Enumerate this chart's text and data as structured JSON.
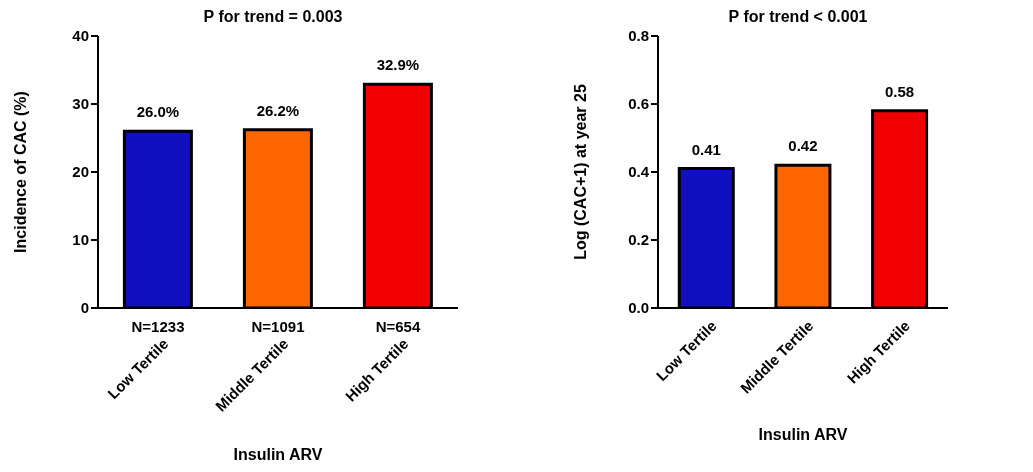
{
  "chart_data": [
    {
      "type": "bar",
      "title": "P for trend = 0.003",
      "xlabel": "Insulin ARV",
      "ylabel": "Incidence of CAC (%)",
      "categories": [
        "Low Tertile",
        "Middle Tertile",
        "High Tertile"
      ],
      "values": [
        26.0,
        26.2,
        32.9
      ],
      "colors": [
        "#1010c0",
        "#ff6600",
        "#f00000"
      ],
      "value_labels": [
        "26.0%",
        "26.2%",
        "32.9%"
      ],
      "ylim": [
        0,
        40
      ],
      "yticks": [
        0,
        10,
        20,
        30,
        40
      ],
      "grid": false,
      "legend": false,
      "annotations": [
        "N=1233",
        "N=1091",
        "N=654"
      ]
    },
    {
      "type": "bar",
      "title": "P for trend < 0.001",
      "xlabel": "Insulin ARV",
      "ylabel": "Log (CAC+1) at year 25",
      "categories": [
        "Low Tertile",
        "Middle Tertile",
        "High Tertile"
      ],
      "values": [
        0.41,
        0.42,
        0.58
      ],
      "colors": [
        "#1010c0",
        "#ff6600",
        "#f00000"
      ],
      "data_labels": true,
      "ylim": [
        0,
        0.8
      ],
      "yticks": [
        {
          "value": 0,
          "label": "0.0"
        },
        {
          "value": 0.2,
          "label": "0.2"
        },
        {
          "value": 0.4,
          "label": "0.4"
        },
        {
          "value": 0.6,
          "label": "0.6"
        },
        {
          "value": 0.8,
          "label": "0.8"
        }
      ],
      "grid": false,
      "legend": false
    }
  ]
}
